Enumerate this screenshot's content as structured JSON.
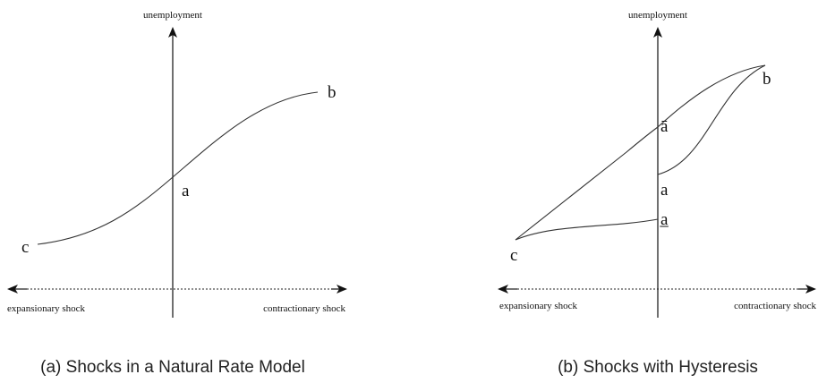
{
  "panels": [
    {
      "y_axis_label": "unemployment",
      "x_axis_left_label": "expansionary shock",
      "x_axis_right_label": "contractionary shock",
      "points": {
        "a": "a",
        "b": "b",
        "c": "c"
      },
      "caption": "(a) Shocks in a Natural Rate Model"
    },
    {
      "y_axis_label": "unemployment",
      "x_axis_left_label": "expansionary shock",
      "x_axis_right_label": "contractionary shock",
      "points": {
        "b": "b",
        "a_bar": "ā",
        "a": "a",
        "a_under": "a̲",
        "c": "c"
      },
      "caption": "(b) Shocks with Hysteresis"
    }
  ]
}
